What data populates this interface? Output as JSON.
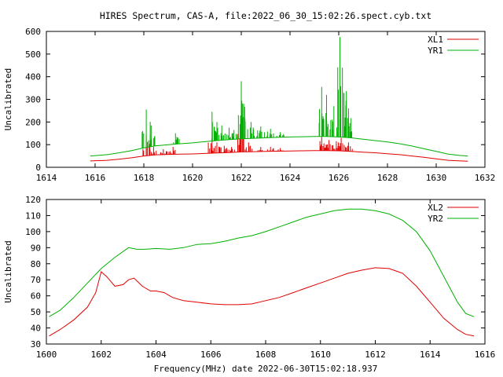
{
  "title": "HIRES Spectrum, CAS-A, file:2022_06_30_15:02:26.spect.cyb.txt",
  "colors": {
    "red": "#e00000",
    "green": "#00b000",
    "axis": "#000000"
  },
  "chart_data": [
    {
      "type": "line",
      "ylabel": "Uncalibrated",
      "xlabel": "",
      "xlim": [
        1614,
        1632
      ],
      "ylim": [
        0,
        600
      ],
      "xticks": [
        1614,
        1616,
        1618,
        1620,
        1622,
        1624,
        1626,
        1628,
        1630,
        1632
      ],
      "yticks": [
        0,
        100,
        200,
        300,
        400,
        500,
        600
      ],
      "legend_position": "top-right",
      "series": [
        {
          "name": "XL1",
          "color": "#e00000",
          "x": [
            1615.8,
            1616.5,
            1617.0,
            1617.5,
            1618.0,
            1618.5,
            1619.0,
            1619.5,
            1620.0,
            1620.5,
            1621.0,
            1621.5,
            1622.0,
            1622.5,
            1623.0,
            1623.5,
            1624.0,
            1624.5,
            1625.0,
            1625.5,
            1626.0,
            1626.5,
            1627.0,
            1627.5,
            1628.0,
            1628.5,
            1629.0,
            1629.5,
            1630.0,
            1630.5,
            1631.0,
            1631.3
          ],
          "values": [
            28,
            31,
            36,
            42,
            50,
            55,
            57,
            58,
            59,
            61,
            63,
            65,
            68,
            69,
            70,
            71,
            72,
            73,
            74,
            74,
            73,
            70,
            67,
            64,
            60,
            56,
            50,
            44,
            37,
            31,
            28,
            27
          ],
          "spikes": [
            [
              1618.1,
              140
            ],
            [
              1618.4,
              90
            ],
            [
              1618.8,
              80
            ],
            [
              1619.2,
              90
            ],
            [
              1620.8,
              130
            ],
            [
              1621.0,
              110
            ],
            [
              1621.3,
              95
            ],
            [
              1621.6,
              90
            ],
            [
              1622.0,
              190
            ],
            [
              1622.3,
              110
            ],
            [
              1622.8,
              90
            ],
            [
              1623.2,
              90
            ],
            [
              1623.6,
              85
            ],
            [
              1625.3,
              135
            ],
            [
              1625.6,
              120
            ],
            [
              1625.9,
              115
            ],
            [
              1626.1,
              130
            ],
            [
              1626.4,
              110
            ]
          ]
        },
        {
          "name": "YR1",
          "color": "#00b000",
          "x": [
            1615.8,
            1616.5,
            1617.0,
            1617.5,
            1618.0,
            1618.5,
            1619.0,
            1619.5,
            1620.0,
            1620.5,
            1621.0,
            1621.5,
            1622.0,
            1622.5,
            1623.0,
            1623.5,
            1624.0,
            1624.5,
            1625.0,
            1625.5,
            1626.0,
            1626.5,
            1627.0,
            1627.5,
            1628.0,
            1628.5,
            1629.0,
            1629.5,
            1630.0,
            1630.5,
            1631.0,
            1631.3
          ],
          "values": [
            50,
            56,
            64,
            74,
            86,
            95,
            100,
            104,
            108,
            113,
            118,
            122,
            126,
            128,
            130,
            132,
            134,
            135,
            136,
            136,
            134,
            130,
            124,
            118,
            112,
            104,
            94,
            82,
            70,
            58,
            52,
            50
          ],
          "spikes": [
            [
              1618.1,
              255
            ],
            [
              1618.3,
              185
            ],
            [
              1619.3,
              150
            ],
            [
              1620.8,
              245
            ],
            [
              1621.0,
              200
            ],
            [
              1621.2,
              185
            ],
            [
              1621.5,
              175
            ],
            [
              1621.7,
              165
            ],
            [
              1622.0,
              380
            ],
            [
              1622.1,
              280
            ],
            [
              1622.4,
              200
            ],
            [
              1622.8,
              180
            ],
            [
              1623.2,
              170
            ],
            [
              1623.6,
              155
            ],
            [
              1625.3,
              355
            ],
            [
              1625.5,
              320
            ],
            [
              1625.8,
              270
            ],
            [
              1626.05,
              575
            ],
            [
              1626.15,
              440
            ],
            [
              1626.4,
              260
            ]
          ]
        }
      ]
    },
    {
      "type": "line",
      "ylabel": "Uncalibrated",
      "xlabel": "Frequency(MHz) date 2022-06-30T15:02:18.937",
      "xlim": [
        1600,
        1616
      ],
      "ylim": [
        30,
        120
      ],
      "xticks": [
        1600,
        1602,
        1604,
        1606,
        1608,
        1610,
        1612,
        1614,
        1616
      ],
      "yticks": [
        30,
        40,
        50,
        60,
        70,
        80,
        90,
        100,
        110,
        120
      ],
      "legend_position": "top-right",
      "series": [
        {
          "name": "XL2",
          "color": "#e00000",
          "x": [
            1600.1,
            1600.5,
            1601.0,
            1601.5,
            1601.8,
            1602.0,
            1602.2,
            1602.5,
            1602.8,
            1603.0,
            1603.2,
            1603.5,
            1603.8,
            1604.0,
            1604.3,
            1604.6,
            1605.0,
            1605.5,
            1606.0,
            1606.5,
            1607.0,
            1607.5,
            1608.0,
            1608.5,
            1609.0,
            1609.5,
            1610.0,
            1610.5,
            1611.0,
            1611.5,
            1612.0,
            1612.5,
            1613.0,
            1613.5,
            1614.0,
            1614.5,
            1615.0,
            1615.3,
            1615.6
          ],
          "values": [
            35,
            39,
            45,
            53,
            62,
            75,
            72,
            66,
            67,
            70,
            71,
            66,
            63,
            63,
            62,
            59,
            57,
            56,
            55,
            54.5,
            54.5,
            55,
            57,
            59,
            62,
            65,
            68,
            71,
            74,
            76,
            77.5,
            77,
            74,
            66,
            56,
            46,
            39,
            36,
            35
          ]
        },
        {
          "name": "YR2",
          "color": "#00b000",
          "x": [
            1600.1,
            1600.5,
            1601.0,
            1601.5,
            1602.0,
            1602.5,
            1603.0,
            1603.3,
            1603.6,
            1604.0,
            1604.5,
            1605.0,
            1605.5,
            1606.0,
            1606.5,
            1607.0,
            1607.5,
            1608.0,
            1608.5,
            1609.0,
            1609.5,
            1610.0,
            1610.5,
            1611.0,
            1611.5,
            1612.0,
            1612.5,
            1613.0,
            1613.5,
            1614.0,
            1614.5,
            1615.0,
            1615.3,
            1615.6
          ],
          "values": [
            47,
            51,
            59,
            68,
            77,
            84,
            90,
            89,
            89,
            89.5,
            89,
            90,
            92,
            92.5,
            94,
            96,
            97.5,
            100,
            103,
            106,
            109,
            111,
            113,
            114,
            114,
            113,
            111,
            107,
            100,
            88,
            72,
            56,
            49,
            47
          ]
        }
      ]
    }
  ]
}
